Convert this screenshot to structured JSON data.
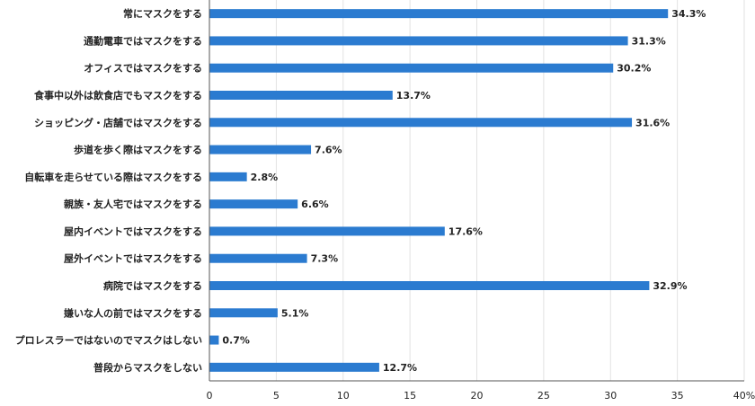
{
  "chart_data": {
    "type": "bar",
    "orientation": "horizontal",
    "categories": [
      "常にマスクをする",
      "通勤電車ではマスクをする",
      "オフィスではマスクをする",
      "食事中以外は飲食店でもマスクをする",
      "ショッピング・店舗ではマスクをする",
      "歩道を歩く際はマスクをする",
      "自転車を走らせている際はマスクをする",
      "親族・友人宅ではマスクをする",
      "屋内イベントではマスクをする",
      "屋外イベントではマスクをする",
      "病院ではマスクをする",
      "嫌いな人の前ではマスクをする",
      "プロレスラーではないのでマスクはしない",
      "普段からマスクをしない"
    ],
    "values": [
      34.3,
      31.3,
      30.2,
      13.7,
      31.6,
      7.6,
      2.8,
      6.6,
      17.6,
      7.3,
      32.9,
      5.1,
      0.7,
      12.7
    ],
    "data_labels": [
      "34.3%",
      "31.3%",
      "30.2%",
      "13.7%",
      "31.6%",
      "7.6%",
      "2.8%",
      "6.6%",
      "17.6%",
      "7.3%",
      "32.9%",
      "5.1%",
      "0.7%",
      "12.7%"
    ],
    "xlim": [
      0,
      40
    ],
    "x_ticks": [
      0,
      5,
      10,
      15,
      20,
      25,
      30,
      35,
      40
    ],
    "x_tick_labels": [
      "0",
      "5",
      "10",
      "15",
      "20",
      "25",
      "30",
      "35",
      "40%"
    ],
    "grid": "vertical",
    "bar_color": "#2b7bd0",
    "title": "",
    "xlabel": "",
    "ylabel": ""
  }
}
